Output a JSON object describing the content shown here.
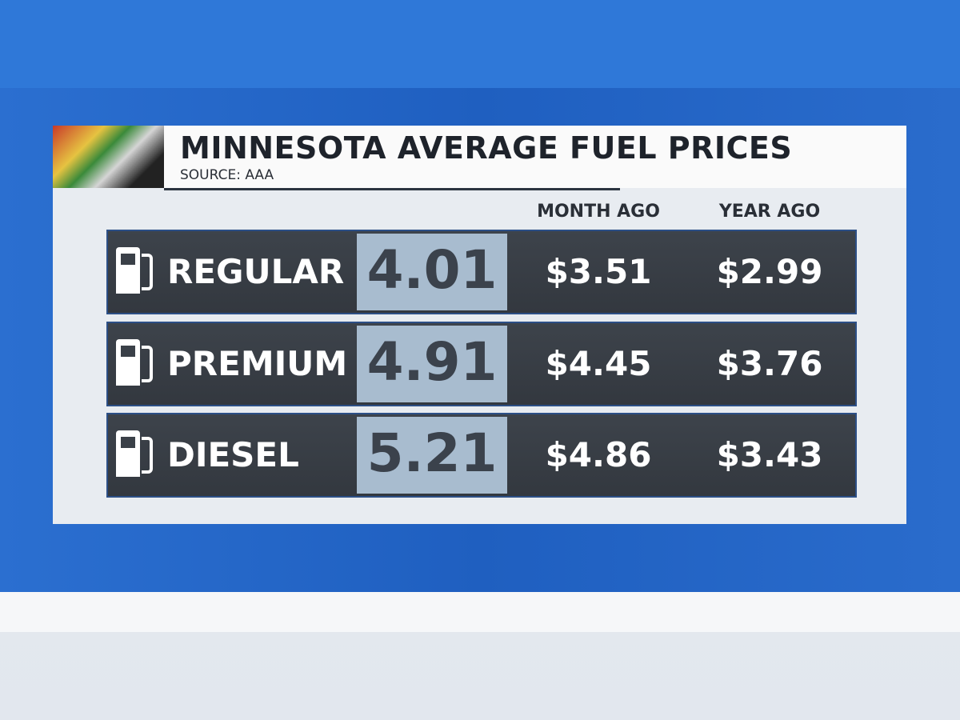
{
  "header": {
    "title": "MINNESOTA AVERAGE FUEL PRICES",
    "source": "SOURCE: AAA"
  },
  "table": {
    "columns": [
      "MONTH AGO",
      "YEAR AGO"
    ],
    "rows": [
      {
        "name": "REGULAR",
        "current": "4.01",
        "month_ago": "$3.51",
        "year_ago": "$2.99"
      },
      {
        "name": "PREMIUM",
        "current": "4.91",
        "month_ago": "$4.45",
        "year_ago": "$3.76"
      },
      {
        "name": "DIESEL",
        "current": "5.21",
        "month_ago": "$4.86",
        "year_ago": "$3.43"
      }
    ]
  }
}
